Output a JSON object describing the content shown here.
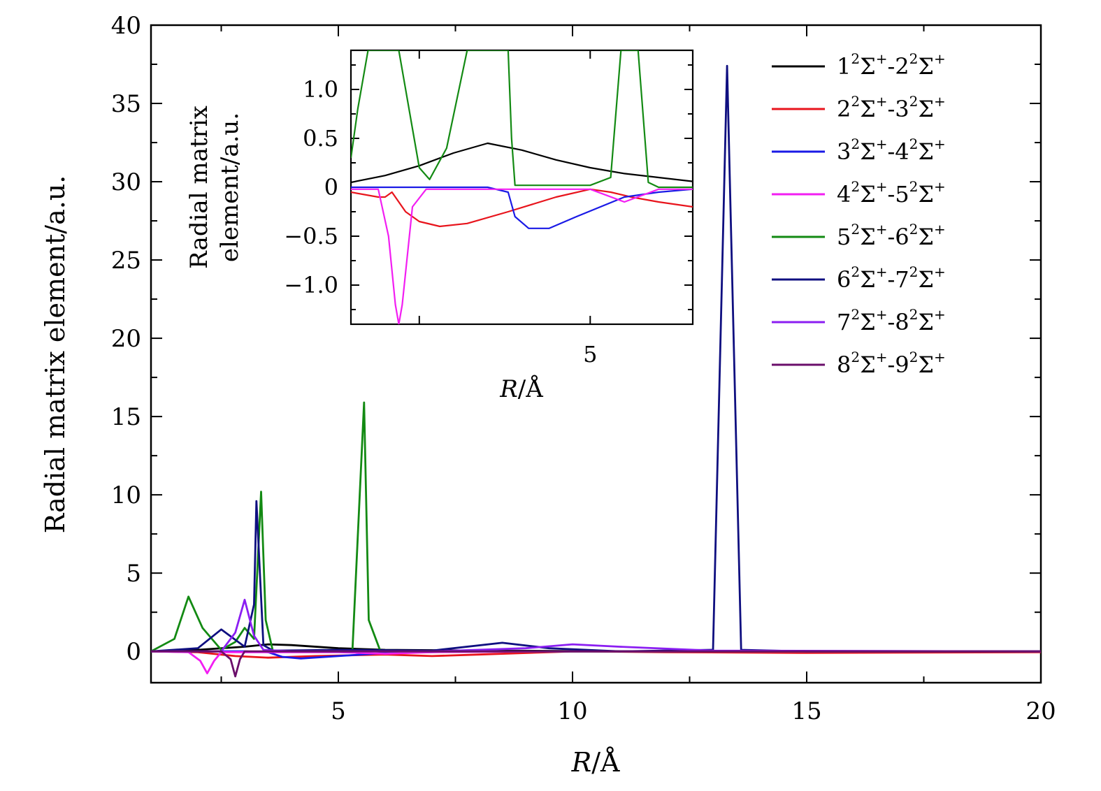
{
  "chart_data": [
    {
      "type": "line",
      "xlabel": "R/Å",
      "ylabel": "Radial matrix element/a.u.",
      "xlim": [
        1,
        20
      ],
      "ylim": [
        -2,
        40
      ],
      "x_ticks": [
        5,
        10,
        15,
        20
      ],
      "y_ticks": [
        0,
        5,
        10,
        15,
        20,
        25,
        30,
        35,
        40
      ],
      "x_tick_labels": [
        "5",
        "10",
        "15",
        "20"
      ],
      "y_tick_labels": [
        "0",
        "5",
        "10",
        "15",
        "20",
        "25",
        "30",
        "35",
        "40"
      ],
      "grid": false,
      "legend_position": "top-right",
      "series": [
        {
          "name": "1²Σ⁺-2²Σ⁺",
          "label_main": [
            "1",
            "Σ",
            "-2",
            "Σ"
          ],
          "color": "#000000",
          "x": [
            1.0,
            2.0,
            3.0,
            3.5,
            4.0,
            5.0,
            6.0,
            8.0,
            10.0,
            12.0,
            15.0,
            20.0
          ],
          "y": [
            0.0,
            0.1,
            0.3,
            0.45,
            0.4,
            0.2,
            0.1,
            0.05,
            0.02,
            0.01,
            0.0,
            0.0
          ]
        },
        {
          "name": "2²Σ⁺-3²Σ⁺",
          "label_main": [
            "2",
            "Σ",
            "-3",
            "Σ"
          ],
          "color": "#e8141c",
          "x": [
            1.0,
            2.0,
            2.8,
            3.5,
            4.5,
            6.0,
            7.0,
            8.0,
            10.0,
            12.0,
            15.0,
            20.0
          ],
          "y": [
            0.0,
            -0.05,
            -0.3,
            -0.4,
            -0.3,
            -0.2,
            -0.3,
            -0.2,
            0.0,
            -0.05,
            -0.1,
            -0.05
          ]
        },
        {
          "name": "3²Σ⁺-4²Σ⁺",
          "label_main": [
            "3",
            "Σ",
            "-4",
            "Σ"
          ],
          "color": "#1a1ae6",
          "x": [
            1.0,
            3.0,
            3.5,
            3.8,
            4.2,
            5.0,
            6.0,
            8.0,
            10.0,
            15.0,
            20.0
          ],
          "y": [
            0.0,
            0.0,
            -0.05,
            -0.35,
            -0.45,
            -0.3,
            -0.1,
            0.0,
            0.0,
            0.0,
            0.0
          ]
        },
        {
          "name": "4²Σ⁺-5²Σ⁺",
          "label_main": [
            "4",
            "Σ",
            "-5",
            "Σ"
          ],
          "color": "#f21ef2",
          "x": [
            1.0,
            1.8,
            2.05,
            2.2,
            2.35,
            2.5,
            3.0,
            5.0,
            6.0,
            7.0,
            10.0,
            20.0
          ],
          "y": [
            0.0,
            -0.05,
            -0.6,
            -1.4,
            -0.6,
            -0.05,
            -0.05,
            -0.05,
            -0.15,
            -0.05,
            0.0,
            0.0
          ]
        },
        {
          "name": "5²Σ⁺-6²Σ⁺",
          "label_main": [
            "5",
            "Σ",
            "-6",
            "Σ"
          ],
          "color": "#138a13",
          "x": [
            1.0,
            1.5,
            1.8,
            2.1,
            2.5,
            2.8,
            3.0,
            3.2,
            3.35,
            3.45,
            3.6,
            4.0,
            5.3,
            5.55,
            5.65,
            5.9,
            6.5,
            10.0,
            20.0
          ],
          "y": [
            0.0,
            0.8,
            3.5,
            1.5,
            0.1,
            0.6,
            1.5,
            0.8,
            10.2,
            2.0,
            0.05,
            0.0,
            0.0,
            15.9,
            2.0,
            0.0,
            0.0,
            0.0,
            0.0
          ]
        },
        {
          "name": "6²Σ⁺-7²Σ⁺",
          "label_main": [
            "6",
            "Σ",
            "-7",
            "Σ"
          ],
          "color": "#0f0f80",
          "x": [
            1.0,
            2.0,
            2.5,
            3.0,
            3.2,
            3.25,
            3.4,
            3.6,
            5.0,
            7.0,
            8.5,
            9.5,
            11.0,
            13.0,
            13.3,
            13.6,
            15.0,
            20.0
          ],
          "y": [
            0.0,
            0.2,
            1.4,
            0.3,
            3.0,
            9.6,
            0.4,
            0.05,
            0.1,
            0.05,
            0.55,
            0.2,
            0.0,
            0.1,
            37.4,
            0.1,
            0.0,
            0.0
          ]
        },
        {
          "name": "7²Σ⁺-8²Σ⁺",
          "label_main": [
            "7",
            "Σ",
            "-8",
            "Σ"
          ],
          "color": "#8b1ef2",
          "x": [
            1.0,
            2.5,
            2.8,
            3.0,
            3.2,
            3.4,
            4.0,
            7.0,
            9.0,
            10.0,
            11.0,
            13.0,
            20.0
          ],
          "y": [
            0.0,
            0.0,
            1.2,
            3.3,
            1.0,
            0.1,
            0.0,
            0.0,
            0.2,
            0.45,
            0.3,
            0.05,
            0.0
          ]
        },
        {
          "name": "8²Σ⁺-9²Σ⁺",
          "label_main": [
            "8",
            "Σ",
            "-9",
            "Σ"
          ],
          "color": "#6a0e6a",
          "x": [
            1.0,
            2.5,
            2.7,
            2.8,
            2.9,
            3.0,
            3.5,
            20.0
          ],
          "y": [
            0.0,
            0.0,
            -0.5,
            -1.6,
            -0.5,
            0.0,
            0.0,
            0.0
          ]
        }
      ]
    },
    {
      "type": "line",
      "inset": true,
      "xlabel": "R/Å",
      "ylabel": "Radial matrix element/a.u.",
      "xlim": [
        1.5,
        6.5
      ],
      "ylim": [
        -1.4,
        1.4
      ],
      "x_ticks": [
        5
      ],
      "x_tick_labels": [
        "5"
      ],
      "y_ticks": [
        1.0,
        0.5,
        0,
        -0.5,
        -1.0
      ],
      "y_tick_labels": [
        "1.0",
        "0.5",
        "0",
        "−0.5",
        "−1.0"
      ],
      "grid": false,
      "series": [
        {
          "name": "1²Σ⁺-2²Σ⁺",
          "color": "#000000",
          "x": [
            1.5,
            2.0,
            2.5,
            3.0,
            3.5,
            4.0,
            4.5,
            5.0,
            5.5,
            6.0,
            6.5
          ],
          "y": [
            0.05,
            0.12,
            0.22,
            0.35,
            0.45,
            0.38,
            0.28,
            0.2,
            0.14,
            0.1,
            0.06
          ]
        },
        {
          "name": "2²Σ⁺-3²Σ⁺",
          "color": "#e8141c",
          "x": [
            1.5,
            1.9,
            2.0,
            2.1,
            2.3,
            2.5,
            2.8,
            3.2,
            3.8,
            4.5,
            5.0,
            5.3,
            5.6,
            6.0,
            6.5
          ],
          "y": [
            -0.05,
            -0.1,
            -0.1,
            -0.05,
            -0.25,
            -0.35,
            -0.4,
            -0.37,
            -0.25,
            -0.1,
            -0.02,
            -0.05,
            -0.1,
            -0.15,
            -0.2
          ]
        },
        {
          "name": "3²Σ⁺-4²Σ⁺",
          "color": "#1a1ae6",
          "x": [
            1.5,
            3.5,
            3.8,
            3.9,
            4.1,
            4.4,
            4.8,
            5.5,
            6.0,
            6.5
          ],
          "y": [
            0.0,
            0.0,
            -0.05,
            -0.3,
            -0.42,
            -0.42,
            -0.3,
            -0.1,
            -0.05,
            -0.02
          ]
        },
        {
          "name": "4²Σ⁺-5²Σ⁺",
          "color": "#f21ef2",
          "x": [
            1.5,
            1.9,
            2.05,
            2.15,
            2.2,
            2.25,
            2.4,
            2.6,
            5.0,
            5.5,
            6.0,
            6.5
          ],
          "y": [
            -0.02,
            -0.02,
            -0.5,
            -1.2,
            -1.4,
            -1.2,
            -0.2,
            -0.02,
            -0.02,
            -0.15,
            -0.02,
            -0.02
          ]
        },
        {
          "name": "5²Σ⁺-6²Σ⁺",
          "color": "#138a13",
          "x": [
            1.5,
            1.6,
            1.75,
            1.8,
            2.2,
            2.4,
            2.5,
            2.65,
            2.9,
            3.2,
            3.4,
            3.8,
            3.85,
            3.9,
            5.0,
            5.3,
            5.45,
            5.5,
            5.7,
            5.85,
            6.0,
            6.5
          ],
          "y": [
            0.3,
            0.8,
            1.4,
            1.4,
            1.4,
            0.6,
            0.2,
            0.08,
            0.4,
            1.4,
            1.4,
            1.4,
            0.5,
            0.02,
            0.02,
            0.1,
            1.4,
            1.4,
            1.4,
            0.05,
            0.0,
            0.0
          ]
        }
      ]
    }
  ]
}
